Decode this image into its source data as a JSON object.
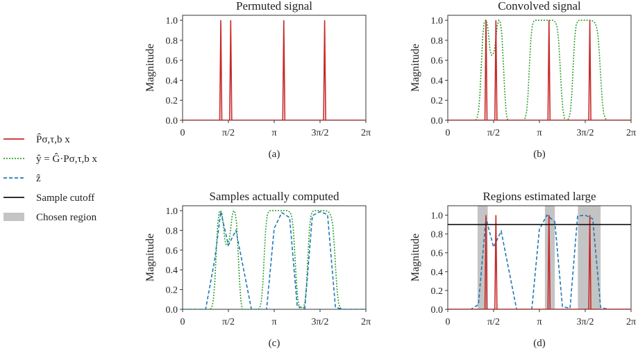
{
  "colors": {
    "signal": "#c62828",
    "convolved": "#2ca02c",
    "estimate": "#1f77b4",
    "cutoff": "#111111",
    "region": "#c4c4c4"
  },
  "legend": [
    {
      "label": "P̂σ,τ,b x",
      "kind": "line",
      "color_key": "signal",
      "dash": ""
    },
    {
      "label": "ŷ = Ĝ·Pσ,τ,b x",
      "kind": "line",
      "color_key": "convolved",
      "dash": "2,2"
    },
    {
      "label": "ẑ",
      "kind": "line",
      "color_key": "estimate",
      "dash": "5,3"
    },
    {
      "label": "Sample cutoff",
      "kind": "line",
      "color_key": "cutoff",
      "dash": ""
    },
    {
      "label": "Chosen region",
      "kind": "band",
      "color_key": "region",
      "dash": ""
    }
  ],
  "chart_data": [
    {
      "type": "line",
      "title": "Permuted signal",
      "caption": "(a)",
      "ylabel": "Magnitude",
      "xlim": [
        0,
        6.2832
      ],
      "ylim": [
        0,
        1.05
      ],
      "xticks": [
        0,
        1.5708,
        3.1416,
        4.7124,
        6.2832
      ],
      "xtick_labels": [
        "0",
        "π/2",
        "π",
        "3π/2",
        "2π"
      ],
      "yticks": [
        0,
        0.2,
        0.4,
        0.6,
        0.8,
        1.0
      ],
      "ytick_labels": [
        "0.0",
        "0.2",
        "0.4",
        "0.6",
        "0.8",
        "1.0"
      ],
      "spikes": [
        1.31,
        1.65,
        3.47,
        4.87
      ],
      "series": [],
      "cutoff": null,
      "regions": []
    },
    {
      "type": "line",
      "title": "Convolved signal",
      "caption": "(b)",
      "ylabel": "Magnitude",
      "xlim": [
        0,
        6.2832
      ],
      "ylim": [
        0,
        1.05
      ],
      "xticks": [
        0,
        1.5708,
        3.1416,
        4.7124,
        6.2832
      ],
      "xtick_labels": [
        "0",
        "π/2",
        "π",
        "3π/2",
        "2π"
      ],
      "yticks": [
        0,
        0.2,
        0.4,
        0.6,
        0.8,
        1.0
      ],
      "ytick_labels": [
        "0.0",
        "0.2",
        "0.4",
        "0.6",
        "0.8",
        "1.0"
      ],
      "spikes": [
        1.31,
        1.65,
        3.47,
        4.87
      ],
      "series": [
        {
          "color_key": "convolved",
          "dash": "2,2",
          "x": [
            0,
            0.95,
            1.0,
            1.05,
            1.1,
            1.15,
            1.2,
            1.25,
            1.3,
            1.35,
            1.4,
            1.45,
            1.5,
            1.55,
            1.6,
            1.65,
            1.7,
            1.75,
            1.8,
            1.85,
            1.9,
            1.95,
            2.0,
            2.05,
            2.6,
            2.65,
            2.7,
            2.75,
            2.8,
            2.85,
            2.9,
            2.95,
            3.0,
            3.05,
            3.1,
            3.15,
            3.2,
            3.25,
            3.3,
            3.4,
            3.5,
            3.6,
            3.7,
            3.75,
            3.8,
            3.85,
            3.9,
            3.95,
            4.0,
            4.05,
            4.1,
            4.15,
            4.2,
            4.25,
            4.3,
            4.35,
            4.4,
            4.45,
            4.5,
            4.55,
            4.6,
            4.65,
            4.7,
            4.75,
            4.8,
            4.9,
            5.0,
            5.05,
            5.1,
            5.15,
            5.2,
            5.25,
            5.3,
            5.35,
            5.4,
            5.45,
            5.5,
            5.55,
            5.6,
            5.65,
            6.2832
          ],
          "y": [
            0,
            0,
            0.02,
            0.08,
            0.25,
            0.55,
            0.85,
            0.98,
            1.0,
            0.97,
            0.85,
            0.7,
            0.65,
            0.66,
            0.7,
            0.82,
            0.95,
            1.0,
            0.98,
            0.88,
            0.6,
            0.3,
            0.08,
            0,
            0,
            0.02,
            0.08,
            0.25,
            0.55,
            0.82,
            0.95,
            0.99,
            1.0,
            1.0,
            1.0,
            1.0,
            1.0,
            1.0,
            1.0,
            1.0,
            1.0,
            1.0,
            0.98,
            0.93,
            0.8,
            0.55,
            0.28,
            0.1,
            0.02,
            0,
            0,
            0.02,
            0.08,
            0.25,
            0.55,
            0.82,
            0.95,
            0.99,
            1.0,
            1.0,
            1.0,
            1.0,
            1.0,
            1.0,
            1.0,
            1.0,
            0.99,
            0.97,
            0.93,
            0.85,
            0.65,
            0.4,
            0.18,
            0.06,
            0.02,
            0,
            0,
            0,
            0,
            0,
            0
          ]
        }
      ],
      "cutoff": null,
      "regions": []
    },
    {
      "type": "line",
      "title": "Samples actually computed",
      "caption": "(c)",
      "ylabel": "Magnitude",
      "xlim": [
        0,
        6.2832
      ],
      "ylim": [
        0,
        1.05
      ],
      "xticks": [
        0,
        1.5708,
        3.1416,
        4.7124,
        6.2832
      ],
      "xtick_labels": [
        "0",
        "π/2",
        "π",
        "3π/2",
        "2π"
      ],
      "yticks": [
        0,
        0.2,
        0.4,
        0.6,
        0.8,
        1.0
      ],
      "ytick_labels": [
        "0.0",
        "0.2",
        "0.4",
        "0.6",
        "0.8",
        "1.0"
      ],
      "spikes": [],
      "series": [
        {
          "color_key": "convolved",
          "dash": "2,2",
          "x": [
            0,
            0.95,
            1.0,
            1.05,
            1.1,
            1.15,
            1.2,
            1.25,
            1.3,
            1.35,
            1.4,
            1.45,
            1.5,
            1.55,
            1.6,
            1.65,
            1.7,
            1.75,
            1.8,
            1.85,
            1.9,
            1.95,
            2.0,
            2.05,
            2.6,
            2.65,
            2.7,
            2.75,
            2.8,
            2.85,
            2.9,
            2.95,
            3.0,
            3.05,
            3.1,
            3.15,
            3.2,
            3.25,
            3.3,
            3.4,
            3.5,
            3.6,
            3.7,
            3.75,
            3.8,
            3.85,
            3.9,
            3.95,
            4.0,
            4.05,
            4.1,
            4.15,
            4.2,
            4.25,
            4.3,
            4.35,
            4.4,
            4.45,
            4.5,
            4.55,
            4.6,
            4.65,
            4.7,
            4.75,
            4.8,
            4.9,
            5.0,
            5.05,
            5.1,
            5.15,
            5.2,
            5.25,
            5.3,
            5.35,
            5.4,
            5.45,
            5.5,
            5.55,
            5.6,
            5.65,
            6.2832
          ],
          "y": [
            0,
            0,
            0.02,
            0.08,
            0.25,
            0.55,
            0.85,
            0.98,
            1.0,
            0.97,
            0.85,
            0.7,
            0.65,
            0.66,
            0.7,
            0.82,
            0.95,
            1.0,
            0.98,
            0.88,
            0.6,
            0.3,
            0.08,
            0,
            0,
            0.02,
            0.08,
            0.25,
            0.55,
            0.82,
            0.95,
            0.99,
            1.0,
            1.0,
            1.0,
            1.0,
            1.0,
            1.0,
            1.0,
            1.0,
            1.0,
            1.0,
            0.98,
            0.93,
            0.8,
            0.55,
            0.28,
            0.1,
            0.02,
            0,
            0,
            0.02,
            0.08,
            0.25,
            0.55,
            0.82,
            0.95,
            0.99,
            1.0,
            1.0,
            1.0,
            1.0,
            1.0,
            1.0,
            1.0,
            1.0,
            0.99,
            0.97,
            0.93,
            0.85,
            0.65,
            0.4,
            0.18,
            0.06,
            0.02,
            0,
            0,
            0,
            0,
            0,
            0
          ]
        },
        {
          "color_key": "estimate",
          "dash": "5,3",
          "x": [
            0,
            0.79,
            1.1,
            1.31,
            1.57,
            1.83,
            2.36,
            2.62,
            2.88,
            3.14,
            3.4,
            3.67,
            3.93,
            4.19,
            4.45,
            4.71,
            4.97,
            5.24,
            5.5,
            6.2832
          ],
          "y": [
            0,
            0,
            0.5,
            0.99,
            0.65,
            0.8,
            0,
            0,
            0,
            0.82,
            0.98,
            0.93,
            0.03,
            0.01,
            0.95,
            0.99,
            0.96,
            0.02,
            0,
            0
          ]
        }
      ],
      "cutoff": null,
      "regions": []
    },
    {
      "type": "line",
      "title": "Regions estimated large",
      "caption": "(d)",
      "ylabel": "Magnitude",
      "xlim": [
        0,
        6.2832
      ],
      "ylim": [
        0,
        1.1
      ],
      "xticks": [
        0,
        1.5708,
        3.1416,
        4.7124,
        6.2832
      ],
      "xtick_labels": [
        "0",
        "π/2",
        "π",
        "3π/2",
        "2π"
      ],
      "yticks": [
        0,
        0.2,
        0.4,
        0.6,
        0.8,
        1.0
      ],
      "ytick_labels": [
        "0.0",
        "0.2",
        "0.4",
        "0.6",
        "0.8",
        "1.0"
      ],
      "spikes": [
        1.31,
        1.65,
        3.47,
        4.87
      ],
      "series": [
        {
          "color_key": "estimate",
          "dash": "5,3",
          "x": [
            0,
            0.79,
            1.05,
            1.31,
            1.57,
            1.83,
            2.36,
            2.62,
            2.88,
            3.14,
            3.4,
            3.67,
            3.93,
            4.19,
            4.45,
            4.71,
            4.97,
            5.24,
            5.5,
            6.2832
          ],
          "y": [
            0,
            0,
            0.05,
            0.97,
            0.66,
            0.83,
            0,
            0,
            0,
            0.85,
            1.0,
            0.93,
            0.03,
            0.01,
            0.99,
            1.0,
            0.96,
            0.02,
            0,
            0
          ]
        }
      ],
      "cutoff": 0.9,
      "regions": [
        [
          1.02,
          1.37
        ],
        [
          3.33,
          3.67
        ],
        [
          4.46,
          5.24
        ]
      ]
    }
  ]
}
